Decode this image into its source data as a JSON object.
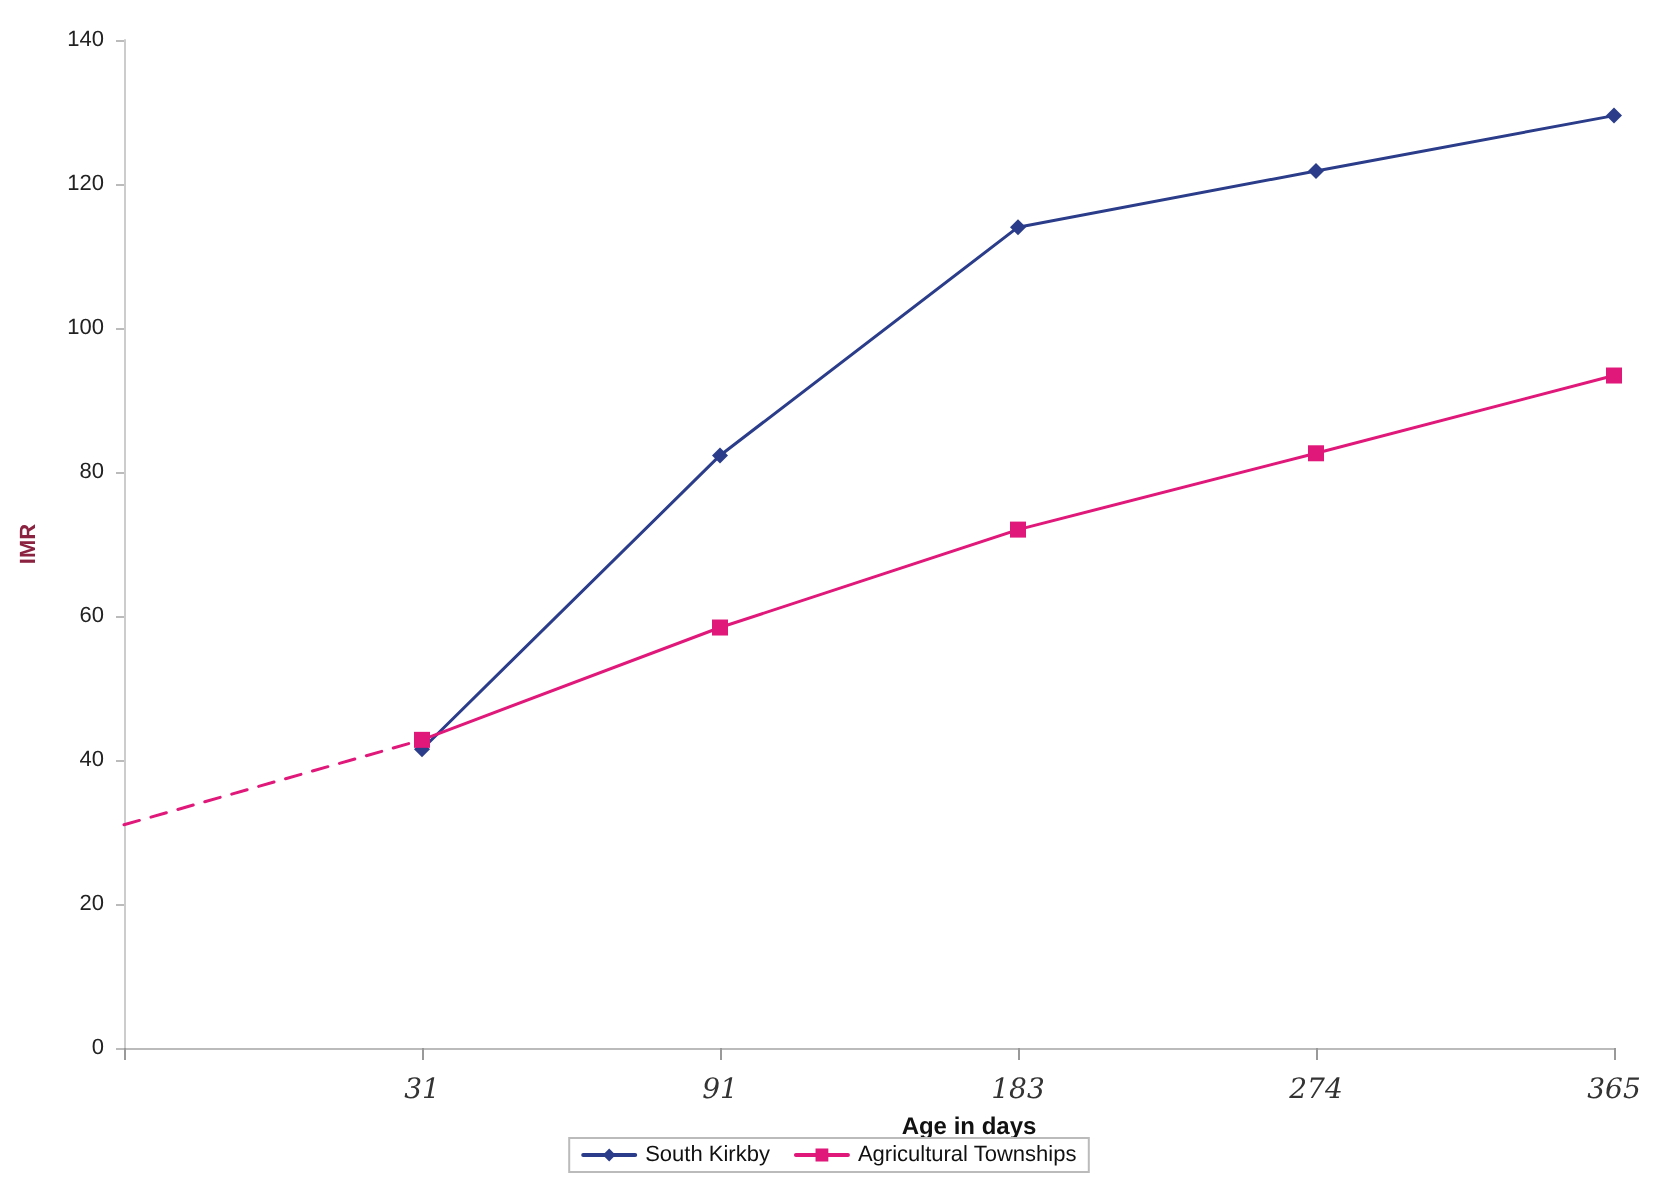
{
  "chart_data": {
    "type": "line",
    "xlabel": "Age in days",
    "ylabel": "IMR",
    "categories": [
      null,
      "31",
      "91",
      "183",
      "274",
      "365"
    ],
    "series": [
      {
        "name": "South Kirkby",
        "color": "#2a3c8a",
        "marker": "diamond",
        "values": [
          null,
          41.5,
          82.3,
          114,
          121.8,
          129.5
        ]
      },
      {
        "name": "Agricultural Townships",
        "color": "#e0187a",
        "marker": "square",
        "values": [
          null,
          42.8,
          58.4,
          72,
          82.6,
          93.4
        ]
      },
      {
        "color": "#e0187a",
        "marker": "none",
        "line_style": "dashed",
        "values": [
          31,
          42.8,
          null,
          null,
          null,
          null
        ]
      }
    ],
    "ylim": [
      0,
      140
    ],
    "yticks": [
      0,
      20,
      40,
      60,
      80,
      100,
      120,
      140
    ],
    "grid": false,
    "legend": "bottom"
  }
}
